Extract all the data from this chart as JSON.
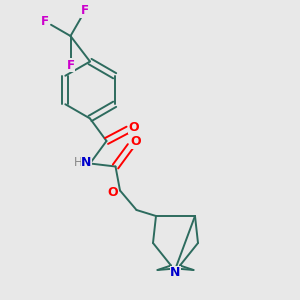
{
  "background_color": "#e8e8e8",
  "bond_color": "#2d6b5e",
  "atom_colors": {
    "F": "#cc00cc",
    "O": "#ff0000",
    "N": "#0000cc",
    "H": "#888888",
    "C": "#2d6b5e"
  },
  "figsize": [
    3.0,
    3.0
  ],
  "dpi": 100
}
